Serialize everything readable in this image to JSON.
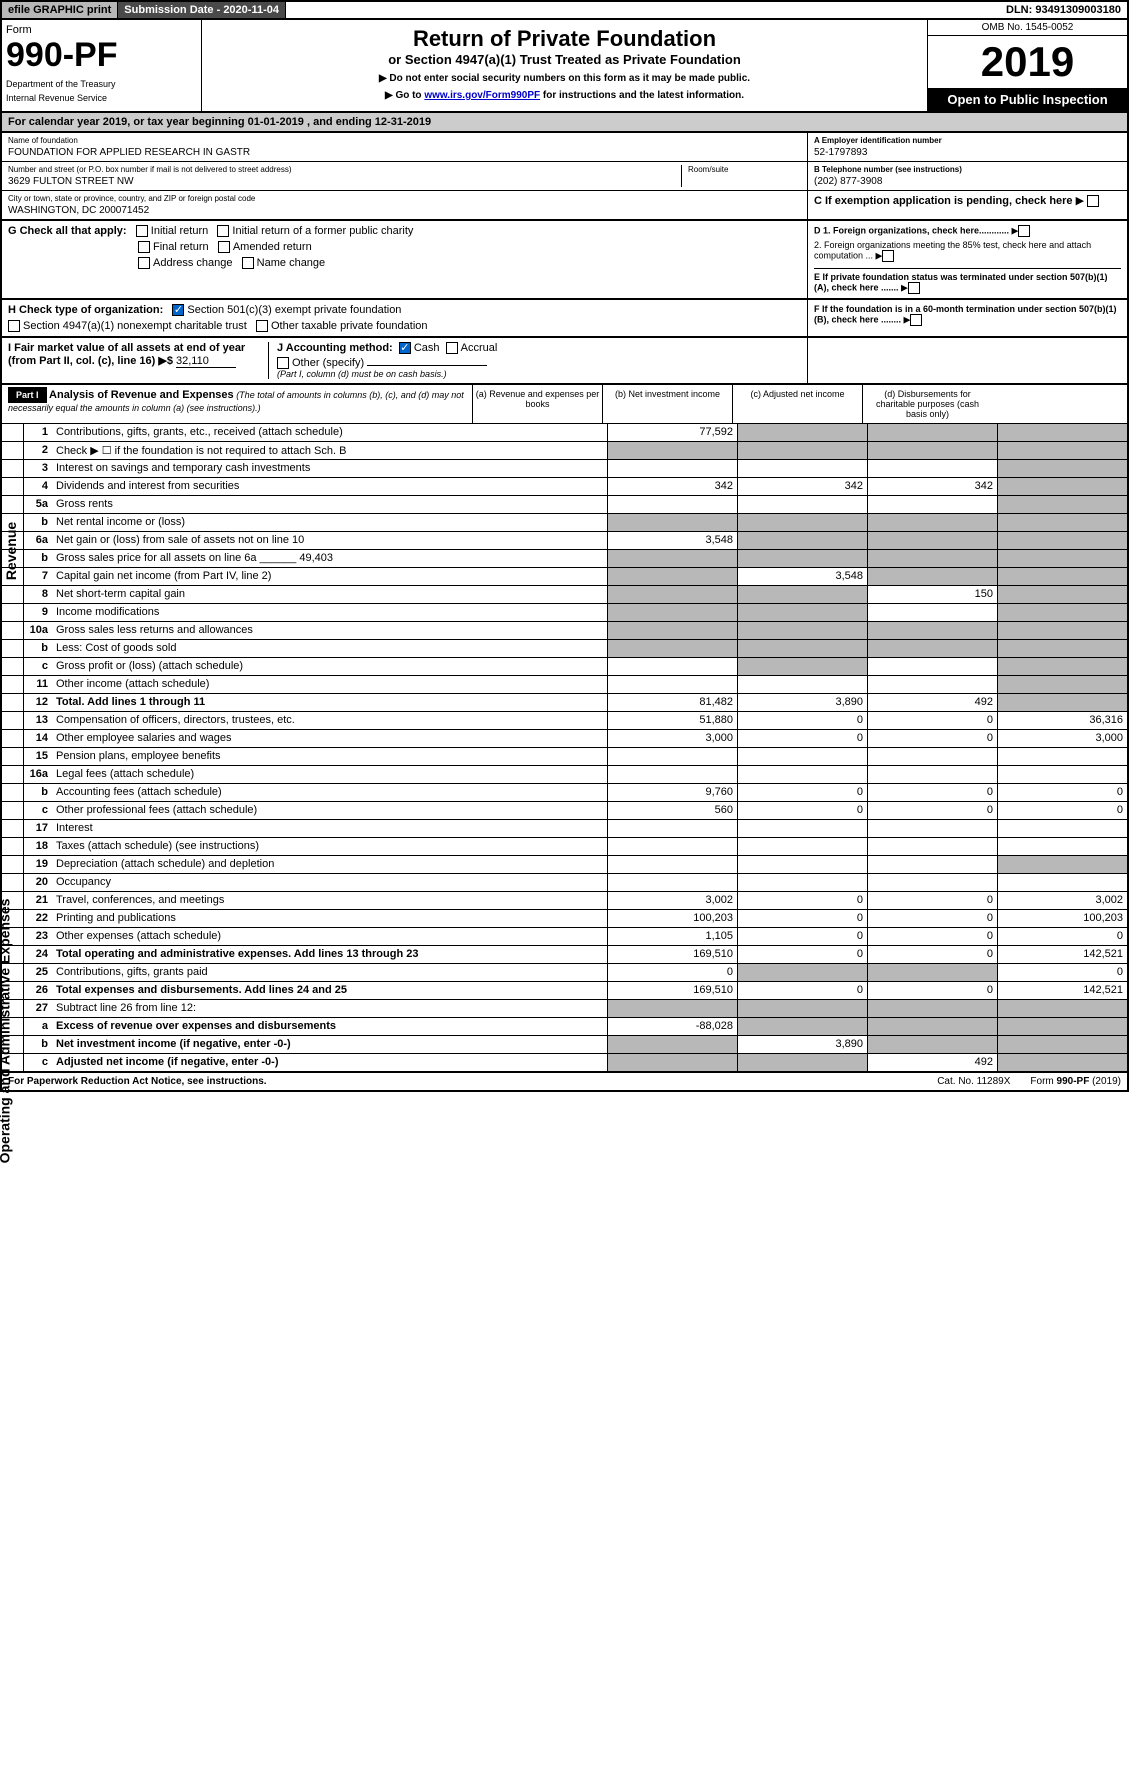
{
  "topbar": {
    "efile": "efile GRAPHIC print",
    "subdate_lbl": "Submission Date - 2020-11-04",
    "dln": "DLN: 93491309003180"
  },
  "header": {
    "form": "Form",
    "formno": "990-PF",
    "dept": "Department of the Treasury",
    "irs": "Internal Revenue Service",
    "title": "Return of Private Foundation",
    "subtitle": "or Section 4947(a)(1) Trust Treated as Private Foundation",
    "arrow1": "▶ Do not enter social security numbers on this form as it may be made public.",
    "arrow2": "▶ Go to www.irs.gov/Form990PF for instructions and the latest information.",
    "link": "www.irs.gov/Form990PF",
    "omb": "OMB No. 1545-0052",
    "year": "2019",
    "open": "Open to Public Inspection"
  },
  "calyr": "For calendar year 2019, or tax year beginning 01-01-2019                , and ending 12-31-2019",
  "id": {
    "name_lbl": "Name of foundation",
    "name": "FOUNDATION FOR APPLIED RESEARCH IN GASTR",
    "addr_lbl": "Number and street (or P.O. box number if mail is not delivered to street address)",
    "addr": "3629 FULTON STREET NW",
    "room_lbl": "Room/suite",
    "city_lbl": "City or town, state or province, country, and ZIP or foreign postal code",
    "city": "WASHINGTON, DC  200071452",
    "ein_lbl": "A Employer identification number",
    "ein": "52-1797893",
    "tel_lbl": "B Telephone number (see instructions)",
    "tel": "(202) 877-3908",
    "c_lbl": "C If exemption application is pending, check here"
  },
  "g": {
    "lbl": "G Check all that apply:",
    "initial": "Initial return",
    "initial2": "Initial return of a former public charity",
    "final": "Final return",
    "amended": "Amended return",
    "addrchg": "Address change",
    "namechg": "Name change",
    "d1": "D 1. Foreign organizations, check here............",
    "d2": "2. Foreign organizations meeting the 85% test, check here and attach computation ...",
    "e": "E  If private foundation status was terminated under section 507(b)(1)(A), check here ......."
  },
  "h": {
    "lbl": "H Check type of organization:",
    "s501": "Section 501(c)(3) exempt private foundation",
    "s4947": "Section 4947(a)(1) nonexempt charitable trust",
    "other": "Other taxable private foundation",
    "f": "F  If the foundation is in a 60-month termination under section 507(b)(1)(B), check here ........"
  },
  "i": {
    "lbl": "I Fair market value of all assets at end of year (from Part II, col. (c), line 16) ▶$ ",
    "val": "32,110",
    "j_lbl": "J Accounting method:",
    "cash": "Cash",
    "accrual": "Accrual",
    "other": "Other (specify)",
    "note": "(Part I, column (d) must be on cash basis.)"
  },
  "partI": "Part I",
  "analysis_title": "Analysis of Revenue and Expenses",
  "analysis_note": "(The total of amounts in columns (b), (c), and (d) may not necessarily equal the amounts in column (a) (see instructions).)",
  "cols": {
    "a": "(a)   Revenue and expenses per books",
    "b": "(b)   Net investment income",
    "c": "(c)   Adjusted net income",
    "d": "(d)   Disbursements for charitable purposes (cash basis only)"
  },
  "rows": [
    {
      "n": "1",
      "d": "Contributions, gifts, grants, etc., received (attach schedule)",
      "a": "77,592",
      "greyBCD": true
    },
    {
      "n": "2",
      "d": "Check ▶ ☐ if the foundation is not required to attach Sch. B",
      "greyA": true,
      "greyBCD": true
    },
    {
      "n": "3",
      "d": "Interest on savings and temporary cash investments",
      "a": "",
      "b": "",
      "c": "",
      "greyD": true
    },
    {
      "n": "4",
      "d": "Dividends and interest from securities",
      "a": "342",
      "b": "342",
      "c": "342",
      "greyD": true
    },
    {
      "n": "5a",
      "d": "Gross rents",
      "greyD": true
    },
    {
      "n": "b",
      "d": "Net rental income or (loss)",
      "greyA": true,
      "greyBCD": true
    },
    {
      "n": "6a",
      "d": "Net gain or (loss) from sale of assets not on line 10",
      "a": "3,548",
      "greyBCD": true
    },
    {
      "n": "b",
      "d": "Gross sales price for all assets on line 6a ______ 49,403",
      "greyA": true,
      "greyBCD": true
    },
    {
      "n": "7",
      "d": "Capital gain net income (from Part IV, line 2)",
      "greyA": true,
      "b": "3,548",
      "greyCD": true
    },
    {
      "n": "8",
      "d": "Net short-term capital gain",
      "greyA": true,
      "greyB": true,
      "c": "150",
      "greyD": true
    },
    {
      "n": "9",
      "d": "Income modifications",
      "greyA": true,
      "greyB": true,
      "greyD": true
    },
    {
      "n": "10a",
      "d": "Gross sales less returns and allowances",
      "greyA": true,
      "greyBCD": true
    },
    {
      "n": "b",
      "d": "Less: Cost of goods sold",
      "greyA": true,
      "greyBCD": true
    },
    {
      "n": "c",
      "d": "Gross profit or (loss) (attach schedule)",
      "greyB": true,
      "greyD": true
    },
    {
      "n": "11",
      "d": "Other income (attach schedule)",
      "greyD": true
    },
    {
      "n": "12",
      "d": "Total. Add lines 1 through 11",
      "bold": true,
      "a": "81,482",
      "b": "3,890",
      "c": "492",
      "greyD": true
    },
    {
      "n": "13",
      "d": "Compensation of officers, directors, trustees, etc.",
      "a": "51,880",
      "b": "0",
      "c": "0",
      "dd": "36,316"
    },
    {
      "n": "14",
      "d": "Other employee salaries and wages",
      "a": "3,000",
      "b": "0",
      "c": "0",
      "dd": "3,000"
    },
    {
      "n": "15",
      "d": "Pension plans, employee benefits"
    },
    {
      "n": "16a",
      "d": "Legal fees (attach schedule)"
    },
    {
      "n": "b",
      "d": "Accounting fees (attach schedule)",
      "a": "9,760",
      "b": "0",
      "c": "0",
      "dd": "0"
    },
    {
      "n": "c",
      "d": "Other professional fees (attach schedule)",
      "a": "560",
      "b": "0",
      "c": "0",
      "dd": "0"
    },
    {
      "n": "17",
      "d": "Interest"
    },
    {
      "n": "18",
      "d": "Taxes (attach schedule) (see instructions)"
    },
    {
      "n": "19",
      "d": "Depreciation (attach schedule) and depletion",
      "greyD": true
    },
    {
      "n": "20",
      "d": "Occupancy"
    },
    {
      "n": "21",
      "d": "Travel, conferences, and meetings",
      "a": "3,002",
      "b": "0",
      "c": "0",
      "dd": "3,002"
    },
    {
      "n": "22",
      "d": "Printing and publications",
      "a": "100,203",
      "b": "0",
      "c": "0",
      "dd": "100,203"
    },
    {
      "n": "23",
      "d": "Other expenses (attach schedule)",
      "a": "1,105",
      "b": "0",
      "c": "0",
      "dd": "0"
    },
    {
      "n": "24",
      "d": "Total operating and administrative expenses. Add lines 13 through 23",
      "bold": true,
      "a": "169,510",
      "b": "0",
      "c": "0",
      "dd": "142,521"
    },
    {
      "n": "25",
      "d": "Contributions, gifts, grants paid",
      "a": "0",
      "greyBC": true,
      "dd": "0"
    },
    {
      "n": "26",
      "d": "Total expenses and disbursements. Add lines 24 and 25",
      "bold": true,
      "a": "169,510",
      "b": "0",
      "c": "0",
      "dd": "142,521"
    },
    {
      "n": "27",
      "d": "Subtract line 26 from line 12:",
      "greyA": true,
      "greyBCD": true
    },
    {
      "n": "a",
      "d": "Excess of revenue over expenses and disbursements",
      "bold": true,
      "a": "-88,028",
      "greyBCD": true
    },
    {
      "n": "b",
      "d": "Net investment income (if negative, enter -0-)",
      "bold": true,
      "greyA": true,
      "b": "3,890",
      "greyCD": true
    },
    {
      "n": "c",
      "d": "Adjusted net income (if negative, enter -0-)",
      "bold": true,
      "greyA": true,
      "greyB": true,
      "c": "492",
      "greyD": true
    }
  ],
  "footer": {
    "left": "For Paperwork Reduction Act Notice, see instructions.",
    "cat": "Cat. No. 11289X",
    "form": "Form 990-PF (2019)"
  },
  "side_rev": "Revenue",
  "side_exp": "Operating and Administrative Expenses"
}
